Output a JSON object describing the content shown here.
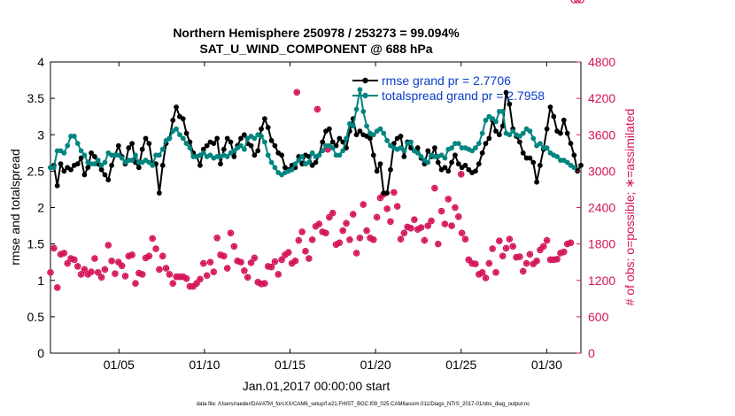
{
  "chart_data": {
    "type": "line",
    "title": "Northern Hemisphere 250978 / 253273 = 99.094%",
    "subtitle": "SAT_U_WIND_COMPONENT @ 688 hPa",
    "xlabel": "Jan.01,2017 00:00:00 start",
    "ylabel_left": "rmse and totalspread",
    "ylabel_right": "# of obs: o=possible; ∗=assimilated",
    "x_ticks": [
      "01/05",
      "01/10",
      "01/15",
      "01/20",
      "01/25",
      "01/30"
    ],
    "y_ticks_left": [
      "0",
      "0.5",
      "1",
      "1.5",
      "2",
      "2.5",
      "3",
      "3.5",
      "4"
    ],
    "y_ticks_right": [
      "0",
      "600",
      "1200",
      "1800",
      "2400",
      "3000",
      "3600",
      "4200",
      "4800"
    ],
    "xlim": [
      1,
      32
    ],
    "ylim_left": [
      0,
      4
    ],
    "ylim_right": [
      0,
      4800
    ],
    "footnote": "data file: /Users/raeder/DAI/ATM_forcXX/CAM6_setup/f.e21.FHIST_BGC.f09_025.CAM6assim.011/Diags_NTrS_2017-01/obs_diag_output.nc",
    "colors": {
      "rmse": "#000000",
      "spread": "#00857f",
      "obs": "#d4145a",
      "legend_text": "#0a3cc8"
    },
    "series": [
      {
        "name": "rmse grand pr = 2.7706",
        "values": [
          2.55,
          2.58,
          2.3,
          2.6,
          2.5,
          2.55,
          2.52,
          2.58,
          2.6,
          2.68,
          2.45,
          2.55,
          2.75,
          2.7,
          2.6,
          2.52,
          2.45,
          2.38,
          2.58,
          2.72,
          2.85,
          2.7,
          2.6,
          2.82,
          2.88,
          2.62,
          2.55,
          2.8,
          2.95,
          2.88,
          2.6,
          2.6,
          2.2,
          2.58,
          2.88,
          2.95,
          3.2,
          3.38,
          3.25,
          3.22,
          3.02,
          2.9,
          2.75,
          2.7,
          2.58,
          2.8,
          2.85,
          2.9,
          2.88,
          2.95,
          2.6,
          2.8,
          2.95,
          2.9,
          2.7,
          2.85,
          2.95,
          3.0,
          2.88,
          2.85,
          2.72,
          2.78,
          3.08,
          3.22,
          3.1,
          2.92,
          2.85,
          2.75,
          2.72,
          2.55,
          2.52,
          2.58,
          2.55,
          2.7,
          2.6,
          2.72,
          2.7,
          2.58,
          2.62,
          2.72,
          2.9,
          3.05,
          3.08,
          2.9,
          2.85,
          2.95,
          2.9,
          2.82,
          3.05,
          3.22,
          3.0,
          3.05,
          3.0,
          2.98,
          2.95,
          2.72,
          2.5,
          2.6,
          2.2,
          2.2,
          2.52,
          2.88,
          2.95,
          2.98,
          2.7,
          2.9,
          2.82,
          2.78,
          2.82,
          2.68,
          2.6,
          2.78,
          2.7,
          2.82,
          2.62,
          2.52,
          2.55,
          2.5,
          2.62,
          2.72,
          2.6,
          2.55,
          2.58,
          2.52,
          2.48,
          2.5,
          2.6,
          2.75,
          2.88,
          2.95,
          3.2,
          3.05,
          3.0,
          3.12,
          3.58,
          3.42,
          3.08,
          2.98,
          2.9,
          2.75,
          2.68,
          2.68,
          2.62,
          2.35,
          2.58,
          2.8,
          3.08,
          3.38,
          3.25,
          3.05,
          3.02,
          3.2,
          3.02,
          2.88,
          2.72,
          2.5,
          2.58
        ]
      },
      {
        "name": "totalspread grand pr = 2.7958",
        "values": [
          2.55,
          2.55,
          2.78,
          2.78,
          2.75,
          2.85,
          2.98,
          2.98,
          2.88,
          2.78,
          2.72,
          2.62,
          2.6,
          2.6,
          2.65,
          2.58,
          2.62,
          2.75,
          2.72,
          2.72,
          2.72,
          2.68,
          2.62,
          2.65,
          2.65,
          2.72,
          2.62,
          2.62,
          2.65,
          2.62,
          2.58,
          2.72,
          2.72,
          2.8,
          2.92,
          2.95,
          3.05,
          3.08,
          3.0,
          2.95,
          2.88,
          2.82,
          2.7,
          2.7,
          2.72,
          2.75,
          2.7,
          2.72,
          2.68,
          2.7,
          2.7,
          2.72,
          2.7,
          2.75,
          2.78,
          2.82,
          2.85,
          2.8,
          2.95,
          2.98,
          2.95,
          3.0,
          2.98,
          2.9,
          2.72,
          2.62,
          2.55,
          2.48,
          2.45,
          2.48,
          2.5,
          2.52,
          2.6,
          2.65,
          2.7,
          2.6,
          2.62,
          2.75,
          2.7,
          2.72,
          2.78,
          2.85,
          2.85,
          2.82,
          2.72,
          2.72,
          2.78,
          2.95,
          3.15,
          3.12,
          3.35,
          3.62,
          3.32,
          3.12,
          3.02,
          3.0,
          3.05,
          3.08,
          3.02,
          2.92,
          2.85,
          2.82,
          2.8,
          2.82,
          2.78,
          2.88,
          2.9,
          2.78,
          2.75,
          2.7,
          2.65,
          2.62,
          2.72,
          2.7,
          2.7,
          2.72,
          2.68,
          2.8,
          2.82,
          2.88,
          2.88,
          2.82,
          2.82,
          2.8,
          2.78,
          2.82,
          2.88,
          3.02,
          3.2,
          3.25,
          3.22,
          3.18,
          3.32,
          3.32,
          3.02,
          3.0,
          3.05,
          3.0,
          2.98,
          3.02,
          3.08,
          3.05,
          2.95,
          2.85,
          2.88,
          2.82,
          2.82,
          2.75,
          2.72,
          2.7,
          2.65,
          2.65,
          2.62,
          2.58,
          2.55
        ]
      },
      {
        "name": "# of obs assimilated",
        "values": [
          1330,
          1730,
          1080,
          1630,
          1650,
          1480,
          1560,
          1540,
          1430,
          1300,
          1380,
          1300,
          1340,
          1560,
          1330,
          1250,
          1380,
          1780,
          1520,
          1310,
          1500,
          1440,
          1270,
          1600,
          1620,
          1150,
          1320,
          1300,
          1570,
          1600,
          1890,
          1720,
          1380,
          1600,
          1400,
          1300,
          1150,
          1260,
          1260,
          1260,
          1230,
          1100,
          1100,
          1150,
          1220,
          1480,
          1280,
          1500,
          1340,
          1900,
          1620,
          1600,
          1400,
          1980,
          1760,
          1520,
          1500,
          1360,
          1250,
          1490,
          1570,
          1170,
          1140,
          1150,
          1430,
          1420,
          1510,
          1300,
          1540,
          1620,
          1660,
          1480,
          1520,
          1860,
          2000,
          1680,
          1560,
          1870,
          2090,
          2130,
          2000,
          1980,
          2240,
          2310,
          1790,
          1820,
          2020,
          2140,
          1870,
          2290,
          1650,
          1900,
          2450,
          2020,
          1900,
          1870,
          2240,
          2560,
          2620,
          2380,
          2170,
          2650,
          2420,
          1880,
          1980,
          2080,
          2060,
          2200,
          2040,
          2070,
          1860,
          2100,
          2180,
          2720,
          1800,
          2340,
          2130,
          2540,
          2100,
          2400,
          2250,
          1980,
          1880,
          1540,
          1480,
          1470,
          1300,
          1330,
          1240,
          1480,
          1720,
          1330,
          1850,
          1600,
          1730,
          1880,
          1760,
          1580,
          1590,
          1350,
          1480,
          1630,
          1470,
          1520,
          1700,
          1760,
          1860,
          1540,
          1540,
          1550,
          1650,
          1670,
          1800,
          1820
        ]
      },
      {
        "name": "# of obs possible",
        "values": [
          1330,
          1730,
          1080,
          1630,
          1650,
          1480,
          1560,
          1540,
          1430,
          1300,
          1380,
          1300,
          1340,
          1560,
          1330,
          1250,
          1380,
          1780,
          1520,
          1310,
          1500,
          1440,
          1270,
          1600,
          1620,
          1150,
          1320,
          1300,
          1570,
          1600,
          1890,
          1720,
          1380,
          1600,
          1400,
          1300,
          1150,
          1260,
          1260,
          1260,
          1230,
          1100,
          1100,
          1150,
          1220,
          1480,
          1280,
          1500,
          1340,
          1900,
          1620,
          1600,
          1400,
          1980,
          1760,
          1520,
          1500,
          1360,
          1250,
          1490,
          1570,
          1170,
          1140,
          1150,
          1430,
          1420,
          1510,
          1300,
          1540,
          1620,
          1660,
          1480,
          1520,
          1860,
          2000,
          1680,
          1560,
          1870,
          2090,
          2130,
          2000,
          1980,
          2240,
          2310,
          1790,
          1820,
          2020,
          2140,
          1870,
          2290,
          1650,
          1900,
          2450,
          2020,
          1900,
          1870,
          2240,
          2560,
          2620,
          2380,
          2170,
          2650,
          2420,
          1880,
          1980,
          2080,
          2060,
          2200,
          2040,
          2070,
          1860,
          2100,
          2180,
          2720,
          1800,
          2340,
          2130,
          2540,
          2100,
          2400,
          2250,
          1980,
          1880,
          1540,
          1480,
          1470,
          1300,
          1330,
          1240,
          1480,
          1720,
          1330,
          1850,
          1600,
          1730,
          1880,
          1760,
          1580,
          1590,
          1350,
          1480,
          1630,
          1470,
          1520,
          1700,
          1760,
          1860,
          1540,
          1540,
          1550,
          1650,
          1670,
          1800,
          1820
        ]
      }
    ]
  }
}
